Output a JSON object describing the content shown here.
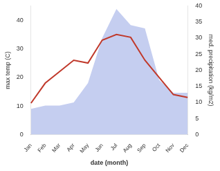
{
  "chart_data": {
    "type": "line",
    "xlabel": "date (month)",
    "ylabel": "max temp (C)",
    "y2label": "med. precipitation (kg/m2)",
    "categories": [
      "Jan",
      "Feb",
      "Mar",
      "Apr",
      "May",
      "Jun",
      "Jul",
      "Aug",
      "Sep",
      "Oct",
      "Nov",
      "Dec"
    ],
    "series": [
      {
        "type": "area",
        "axis": "y2",
        "color": "#c5cef0",
        "values": [
          8,
          9,
          9,
          10,
          16,
          30,
          39,
          34,
          33,
          17,
          13,
          13
        ]
      },
      {
        "type": "line",
        "color": "#c0392b",
        "values": [
          11,
          18,
          22,
          26,
          25,
          33,
          35,
          34,
          26,
          20,
          14,
          13
        ]
      }
    ],
    "ylim": [
      0,
      45
    ],
    "yticks": [
      0,
      10,
      20,
      30,
      40
    ],
    "y2lim": [
      0,
      40
    ],
    "y2ticks": [
      0,
      5,
      10,
      15,
      20,
      25,
      30,
      35,
      40
    ],
    "grid": false
  }
}
